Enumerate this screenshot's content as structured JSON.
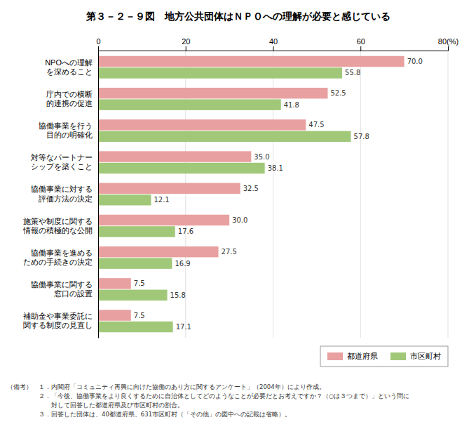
{
  "chart_data": {
    "type": "bar",
    "orientation": "horizontal",
    "title": "第３－２－９図　地方公共団体はＮＰＯへの理解が必要と感じている",
    "categories": [
      "NPOへの理解\nを深めること",
      "庁内での横断\n的連携の促進",
      "協働事業を行う\n目的の明確化",
      "対等なパートナー\nシップを築くこと",
      "協働事業に対する\n評価方法の決定",
      "施策や制度に関する\n情報の積極的な公開",
      "協働事業を進める\nための手続きの決定",
      "協働事業に関する\n窓口の設置",
      "補助金や事業委託に\n関する制度の見直し"
    ],
    "series": [
      {
        "name": "都道府県",
        "color": "#e8a0a0",
        "values": [
          70.0,
          52.5,
          47.5,
          35.0,
          32.5,
          30.0,
          27.5,
          7.5,
          7.5
        ],
        "value_labels": [
          "70.0",
          "52.5",
          "47.5",
          "35.0",
          "32.5",
          "30.0",
          "27.5",
          "7.5",
          "7.5"
        ]
      },
      {
        "name": "市区町村",
        "color": "#a0c878",
        "values": [
          55.8,
          41.8,
          57.8,
          38.1,
          12.1,
          17.6,
          16.9,
          15.8,
          17.1
        ]
      }
    ],
    "xlim": [
      0,
      80
    ],
    "xticks": [
      0,
      20,
      40,
      60,
      {
        "value": 80,
        "label": "80(%)"
      }
    ],
    "grid": true,
    "data_labels": true,
    "legend": "lower right",
    "annotations": [
      "（備考）　１．内閣府「コミュニティ再興に向けた協働のあり方に関するアンケート」（2004年）により作成。",
      "　　　　　２．「今後、協働事業をより良くするために自治体としてどのようなことが必要だとお考えですか？（○は３つまで）」という問に",
      "　　　　　　　対して回答した都道府県及び市区町村の割合。",
      "　　　　　３．回答した団体は、40都道府県、631市区町村（「その他」の図中への記載は省略）。"
    ]
  }
}
